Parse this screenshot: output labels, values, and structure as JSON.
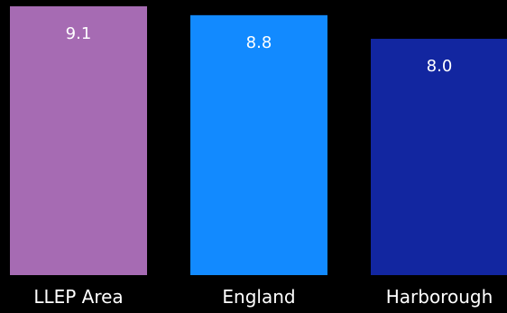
{
  "chart_data": {
    "type": "bar",
    "categories": [
      "LLEP Area",
      "England",
      "Harborough"
    ],
    "values": [
      9.1,
      8.8,
      8.0
    ],
    "value_labels": [
      "9.1",
      "8.8",
      "8.0"
    ],
    "colors": [
      "#a66bb3",
      "#128aff",
      "#1226a0"
    ],
    "background": "#000000",
    "text_color": "#ffffff",
    "grid": false,
    "legend": "none"
  }
}
